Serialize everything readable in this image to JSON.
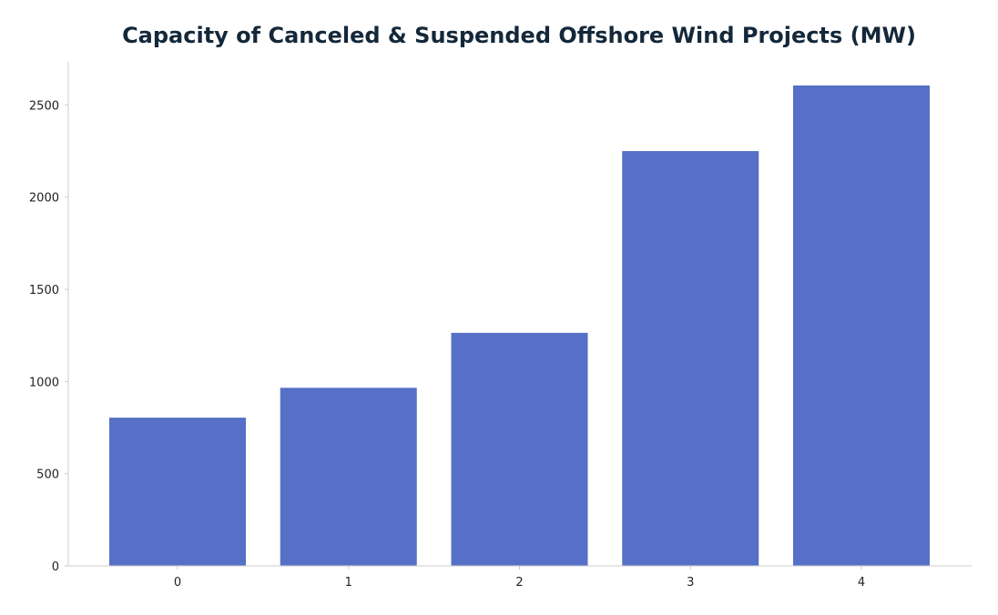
{
  "chart_data": {
    "type": "bar",
    "title": "Capacity of Canceled & Suspended Offshore Wind Projects (MW)",
    "xlabel": "",
    "ylabel": "",
    "categories": [
      "0",
      "1",
      "2",
      "3",
      "4"
    ],
    "values": [
      804,
      966,
      1264,
      2250,
      2606
    ],
    "ylim": [
      0,
      2734
    ],
    "yticks": [
      0,
      500,
      1000,
      1500,
      2000,
      2500
    ],
    "grid": false,
    "legend": "none",
    "bar_color": "#5570c6",
    "axis_color": "#cccccc",
    "title_color": "#14283a"
  }
}
